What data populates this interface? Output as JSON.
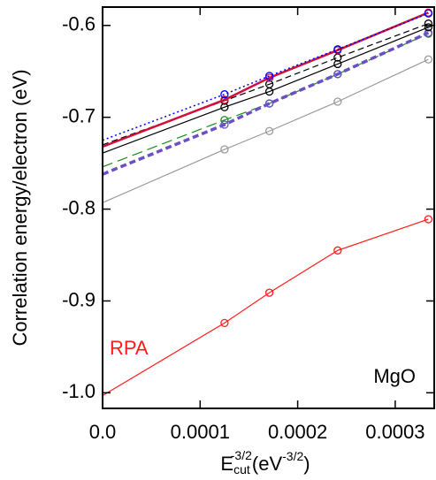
{
  "chart_data": {
    "type": "line",
    "y_label": "Correlation energy/electron (eV)",
    "x_label": {
      "base": "E",
      "sub": "cut",
      "sup": "-3/2",
      "unit_open": "(eV",
      "unit_sup": "-3/2",
      "unit_close": ")"
    },
    "annotations": [
      {
        "text": "RPA",
        "color": "#ff1a1a"
      },
      {
        "text": "MgO",
        "color": "#000000"
      }
    ],
    "x": [
      0,
      0.000125,
      0.000171,
      0.000241,
      0.000334
    ],
    "marker_start": 1,
    "xlim": [
      0,
      0.00034
    ],
    "ylim": [
      -1.017,
      -0.58
    ],
    "xticks": [
      {
        "value": 0,
        "label": "0.0"
      },
      0.0001,
      0.0002,
      0.0003
    ],
    "yticks": [
      -0.6,
      -0.7,
      -0.8,
      -0.9,
      {
        "value": -1.0,
        "label": "-1.0"
      }
    ],
    "series": [
      {
        "color": "#ff1a1a",
        "dash": "solid",
        "width": 1.2,
        "values": [
          -1.003,
          -0.924,
          -0.891,
          -0.845,
          -0.811
        ]
      },
      {
        "color": "#9a9a9a",
        "dash": "solid",
        "width": 1.2,
        "values": [
          -0.793,
          -0.735,
          -0.715,
          -0.683,
          -0.637
        ]
      },
      {
        "color": "#1a8c1a",
        "dash": "long",
        "width": 1.2,
        "values": [
          -0.754,
          -0.703,
          -0.685,
          -0.653,
          -0.609
        ]
      },
      {
        "color": "#6a4fc7",
        "dash": "dashed",
        "width": 3.5,
        "values": [
          -0.762,
          -0.708,
          -0.685,
          -0.653,
          -0.608
        ]
      },
      {
        "color": "#000000",
        "dash": "solid",
        "width": 1.2,
        "values": [
          -0.739,
          -0.689,
          -0.672,
          -0.642,
          -0.602
        ]
      },
      {
        "color": "#000000",
        "dash": "dashed",
        "width": 1.2,
        "values": [
          -0.73,
          -0.682,
          -0.664,
          -0.635,
          -0.598
        ]
      },
      {
        "color": "#d0103a",
        "dash": "solid",
        "width": 2.5,
        "values": [
          -0.732,
          -0.681,
          -0.657,
          -0.627,
          -0.586
        ]
      },
      {
        "color": "#0000ff",
        "dash": "dotted",
        "width": 1.5,
        "values": [
          -0.725,
          -0.675,
          -0.655,
          -0.626,
          -0.587
        ]
      }
    ]
  }
}
